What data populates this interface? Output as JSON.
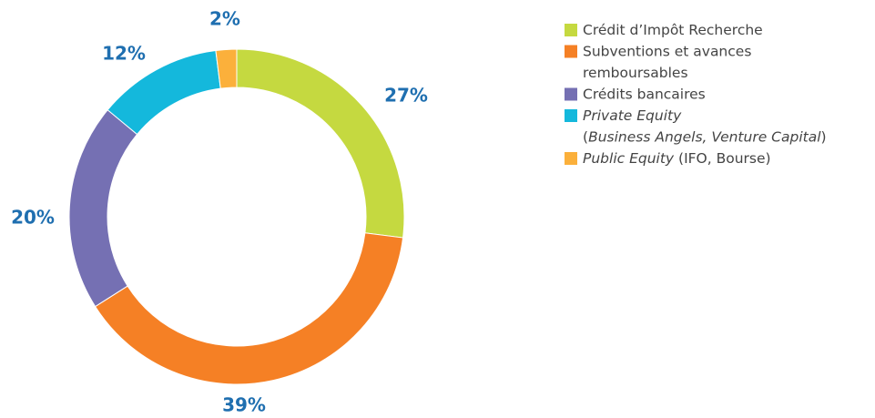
{
  "chart_data": {
    "type": "donut",
    "categories": [
      [
        [
          {
            "text": "Crédit d’Impôt Recherche"
          }
        ]
      ],
      [
        [
          {
            "text": "Subventions et avances"
          }
        ],
        [
          {
            "text": "remboursables"
          }
        ]
      ],
      [
        [
          {
            "text": "Crédits bancaires"
          }
        ]
      ],
      [
        [
          {
            "text": "Private Equity",
            "italic": true
          }
        ],
        [
          {
            "text": "("
          },
          {
            "text": "Business Angels, Venture Capital",
            "italic": true
          },
          {
            "text": ")"
          }
        ]
      ],
      [
        [
          {
            "text": "Public Equity",
            "italic": true
          },
          {
            "text": " (IFO, Bourse)"
          }
        ]
      ]
    ],
    "values": [
      27,
      39,
      20,
      12,
      2
    ],
    "value_labels": [
      "27%",
      "39%",
      "20%",
      "12%",
      "2%"
    ],
    "colors": [
      "#c5d940",
      "#f58025",
      "#7570b3",
      "#14b8dc",
      "#fbb03b"
    ],
    "legend": "top-right"
  }
}
